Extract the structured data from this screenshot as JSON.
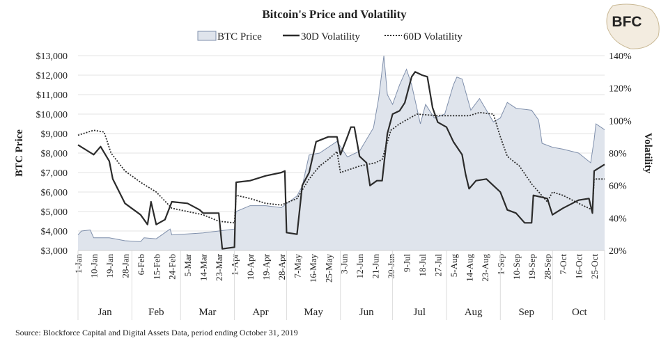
{
  "chart_data": {
    "type": "area+line",
    "title": "Bitcoin's Price and Volatility",
    "ylabel": "BTC Price",
    "y2label": "Volatility",
    "ylim": [
      3000,
      13000
    ],
    "y2lim": [
      20,
      140
    ],
    "yticks": [
      "$3,000",
      "$4,000",
      "$5,000",
      "$6,000",
      "$7,000",
      "$8,000",
      "$9,000",
      "$10,000",
      "$11,000",
      "$12,000",
      "$13,000"
    ],
    "y2ticks": [
      "20%",
      "40%",
      "60%",
      "80%",
      "100%",
      "120%",
      "140%"
    ],
    "xlim": [
      "2019-01-01",
      "2019-10-31"
    ],
    "xticks": [
      "1-Jan",
      "10-Jan",
      "19-Jan",
      "28-Jan",
      "6-Feb",
      "15-Feb",
      "24-Feb",
      "5-Mar",
      "14-Mar",
      "23-Mar",
      "1-Apr",
      "10-Apr",
      "19-Apr",
      "28-Apr",
      "7-May",
      "16-May",
      "25-May",
      "3-Jun",
      "12-Jun",
      "21-Jun",
      "30-Jun",
      "9-Jul",
      "18-Jul",
      "27-Jul",
      "5-Aug",
      "14-Aug",
      "23-Aug",
      "1-Sep",
      "10-Sep",
      "19-Sep",
      "28-Sep",
      "7-Oct",
      "16-Oct",
      "25-Oct"
    ],
    "months": [
      "Jan",
      "Feb",
      "Mar",
      "Apr",
      "May",
      "Jun",
      "Jul",
      "Aug",
      "Sep",
      "Oct"
    ],
    "grid": true,
    "legend_placement": "top",
    "colors": {
      "price_fill": "#dfe4ec",
      "price_line": "#7f8fab",
      "vol": "#2b2b2b",
      "grid": "#e3e3e3"
    },
    "series": [
      {
        "name": "BTC Price",
        "axis": "left",
        "style": "area",
        "points": [
          [
            "2019-01-01",
            3800
          ],
          [
            "2019-01-03",
            4000
          ],
          [
            "2019-01-08",
            4050
          ],
          [
            "2019-01-10",
            3650
          ],
          [
            "2019-01-19",
            3650
          ],
          [
            "2019-01-28",
            3500
          ],
          [
            "2019-02-06",
            3450
          ],
          [
            "2019-02-08",
            3650
          ],
          [
            "2019-02-15",
            3600
          ],
          [
            "2019-02-23",
            4100
          ],
          [
            "2019-02-24",
            3800
          ],
          [
            "2019-03-05",
            3850
          ],
          [
            "2019-03-14",
            3900
          ],
          [
            "2019-03-23",
            4000
          ],
          [
            "2019-04-01",
            4100
          ],
          [
            "2019-04-02",
            5000
          ],
          [
            "2019-04-10",
            5300
          ],
          [
            "2019-04-19",
            5300
          ],
          [
            "2019-04-28",
            5200
          ],
          [
            "2019-05-07",
            5800
          ],
          [
            "2019-05-10",
            6300
          ],
          [
            "2019-05-14",
            7900
          ],
          [
            "2019-05-20",
            8000
          ],
          [
            "2019-05-30",
            8600
          ],
          [
            "2019-06-05",
            7800
          ],
          [
            "2019-06-12",
            8100
          ],
          [
            "2019-06-20",
            9300
          ],
          [
            "2019-06-23",
            10800
          ],
          [
            "2019-06-26",
            13000
          ],
          [
            "2019-06-28",
            11000
          ],
          [
            "2019-07-01",
            10500
          ],
          [
            "2019-07-05",
            11500
          ],
          [
            "2019-07-09",
            12300
          ],
          [
            "2019-07-12",
            11500
          ],
          [
            "2019-07-17",
            9500
          ],
          [
            "2019-07-20",
            10500
          ],
          [
            "2019-07-25",
            9800
          ],
          [
            "2019-07-31",
            10000
          ],
          [
            "2019-08-05",
            11500
          ],
          [
            "2019-08-07",
            11900
          ],
          [
            "2019-08-10",
            11800
          ],
          [
            "2019-08-15",
            10200
          ],
          [
            "2019-08-20",
            10800
          ],
          [
            "2019-08-28",
            9600
          ],
          [
            "2019-09-01",
            9800
          ],
          [
            "2019-09-05",
            10600
          ],
          [
            "2019-09-10",
            10300
          ],
          [
            "2019-09-19",
            10200
          ],
          [
            "2019-09-23",
            9700
          ],
          [
            "2019-09-25",
            8500
          ],
          [
            "2019-10-01",
            8300
          ],
          [
            "2019-10-07",
            8200
          ],
          [
            "2019-10-16",
            8000
          ],
          [
            "2019-10-23",
            7500
          ],
          [
            "2019-10-25",
            8700
          ],
          [
            "2019-10-26",
            9500
          ],
          [
            "2019-10-31",
            9200
          ]
        ]
      },
      {
        "name": "30D Volatility",
        "axis": "right",
        "style": "solid",
        "points": [
          [
            "2019-01-01",
            85
          ],
          [
            "2019-01-10",
            79
          ],
          [
            "2019-01-14",
            84
          ],
          [
            "2019-01-19",
            75
          ],
          [
            "2019-01-21",
            64
          ],
          [
            "2019-01-28",
            49
          ],
          [
            "2019-02-06",
            42
          ],
          [
            "2019-02-10",
            36
          ],
          [
            "2019-02-12",
            50
          ],
          [
            "2019-02-15",
            36
          ],
          [
            "2019-02-20",
            39
          ],
          [
            "2019-02-24",
            50
          ],
          [
            "2019-03-05",
            49
          ],
          [
            "2019-03-12",
            45
          ],
          [
            "2019-03-14",
            43
          ],
          [
            "2019-03-23",
            43
          ],
          [
            "2019-03-25",
            21
          ],
          [
            "2019-04-01",
            22
          ],
          [
            "2019-04-02",
            62
          ],
          [
            "2019-04-10",
            63
          ],
          [
            "2019-04-19",
            66
          ],
          [
            "2019-04-28",
            68
          ],
          [
            "2019-04-30",
            69
          ],
          [
            "2019-05-01",
            31
          ],
          [
            "2019-05-07",
            30
          ],
          [
            "2019-05-10",
            60
          ],
          [
            "2019-05-14",
            68
          ],
          [
            "2019-05-18",
            87
          ],
          [
            "2019-05-25",
            90
          ],
          [
            "2019-05-30",
            90
          ],
          [
            "2019-06-01",
            79
          ],
          [
            "2019-06-05",
            90
          ],
          [
            "2019-06-07",
            96
          ],
          [
            "2019-06-09",
            96
          ],
          [
            "2019-06-12",
            78
          ],
          [
            "2019-06-16",
            74
          ],
          [
            "2019-06-18",
            60
          ],
          [
            "2019-06-22",
            63
          ],
          [
            "2019-06-25",
            63
          ],
          [
            "2019-06-28",
            92
          ],
          [
            "2019-07-01",
            104
          ],
          [
            "2019-07-05",
            106
          ],
          [
            "2019-07-08",
            111
          ],
          [
            "2019-07-12",
            127
          ],
          [
            "2019-07-14",
            130
          ],
          [
            "2019-07-18",
            128
          ],
          [
            "2019-07-21",
            127
          ],
          [
            "2019-07-24",
            108
          ],
          [
            "2019-07-27",
            99
          ],
          [
            "2019-08-01",
            96
          ],
          [
            "2019-08-05",
            87
          ],
          [
            "2019-08-10",
            79
          ],
          [
            "2019-08-12",
            67
          ],
          [
            "2019-08-14",
            58
          ],
          [
            "2019-08-18",
            63
          ],
          [
            "2019-08-24",
            64
          ],
          [
            "2019-08-28",
            60
          ],
          [
            "2019-09-01",
            56
          ],
          [
            "2019-09-05",
            45
          ],
          [
            "2019-09-10",
            43
          ],
          [
            "2019-09-15",
            37
          ],
          [
            "2019-09-19",
            37
          ],
          [
            "2019-09-20",
            54
          ],
          [
            "2019-09-28",
            52
          ],
          [
            "2019-10-01",
            42
          ],
          [
            "2019-10-07",
            46
          ],
          [
            "2019-10-16",
            51
          ],
          [
            "2019-10-22",
            52
          ],
          [
            "2019-10-24",
            43
          ],
          [
            "2019-10-25",
            69
          ],
          [
            "2019-10-31",
            73
          ]
        ]
      },
      {
        "name": "60D Volatility",
        "axis": "right",
        "style": "dotted",
        "points": [
          [
            "2019-01-01",
            91
          ],
          [
            "2019-01-10",
            94
          ],
          [
            "2019-01-16",
            93
          ],
          [
            "2019-01-20",
            80
          ],
          [
            "2019-01-28",
            69
          ],
          [
            "2019-02-06",
            62
          ],
          [
            "2019-02-15",
            56
          ],
          [
            "2019-02-24",
            46
          ],
          [
            "2019-03-05",
            44
          ],
          [
            "2019-03-14",
            42
          ],
          [
            "2019-03-23",
            38
          ],
          [
            "2019-04-01",
            37
          ],
          [
            "2019-04-02",
            54
          ],
          [
            "2019-04-10",
            52
          ],
          [
            "2019-04-19",
            49
          ],
          [
            "2019-04-28",
            48
          ],
          [
            "2019-05-07",
            52
          ],
          [
            "2019-05-14",
            64
          ],
          [
            "2019-05-20",
            72
          ],
          [
            "2019-05-25",
            76
          ],
          [
            "2019-05-30",
            81
          ],
          [
            "2019-06-01",
            68
          ],
          [
            "2019-06-12",
            72
          ],
          [
            "2019-06-21",
            74
          ],
          [
            "2019-06-25",
            76
          ],
          [
            "2019-06-30",
            94
          ],
          [
            "2019-07-05",
            98
          ],
          [
            "2019-07-15",
            104
          ],
          [
            "2019-07-27",
            103
          ],
          [
            "2019-08-05",
            103
          ],
          [
            "2019-08-14",
            103
          ],
          [
            "2019-08-20",
            105
          ],
          [
            "2019-08-28",
            104
          ],
          [
            "2019-09-01",
            90
          ],
          [
            "2019-09-05",
            78
          ],
          [
            "2019-09-12",
            72
          ],
          [
            "2019-09-19",
            61
          ],
          [
            "2019-09-28",
            50
          ],
          [
            "2019-10-01",
            56
          ],
          [
            "2019-10-07",
            54
          ],
          [
            "2019-10-16",
            49
          ],
          [
            "2019-10-24",
            45
          ],
          [
            "2019-10-25",
            64
          ],
          [
            "2019-10-31",
            64
          ]
        ]
      }
    ]
  },
  "logo": {
    "text": "BFC"
  },
  "source": "Source: Blockforce Capital and Digital Assets Data, period ending October 31, 2019"
}
